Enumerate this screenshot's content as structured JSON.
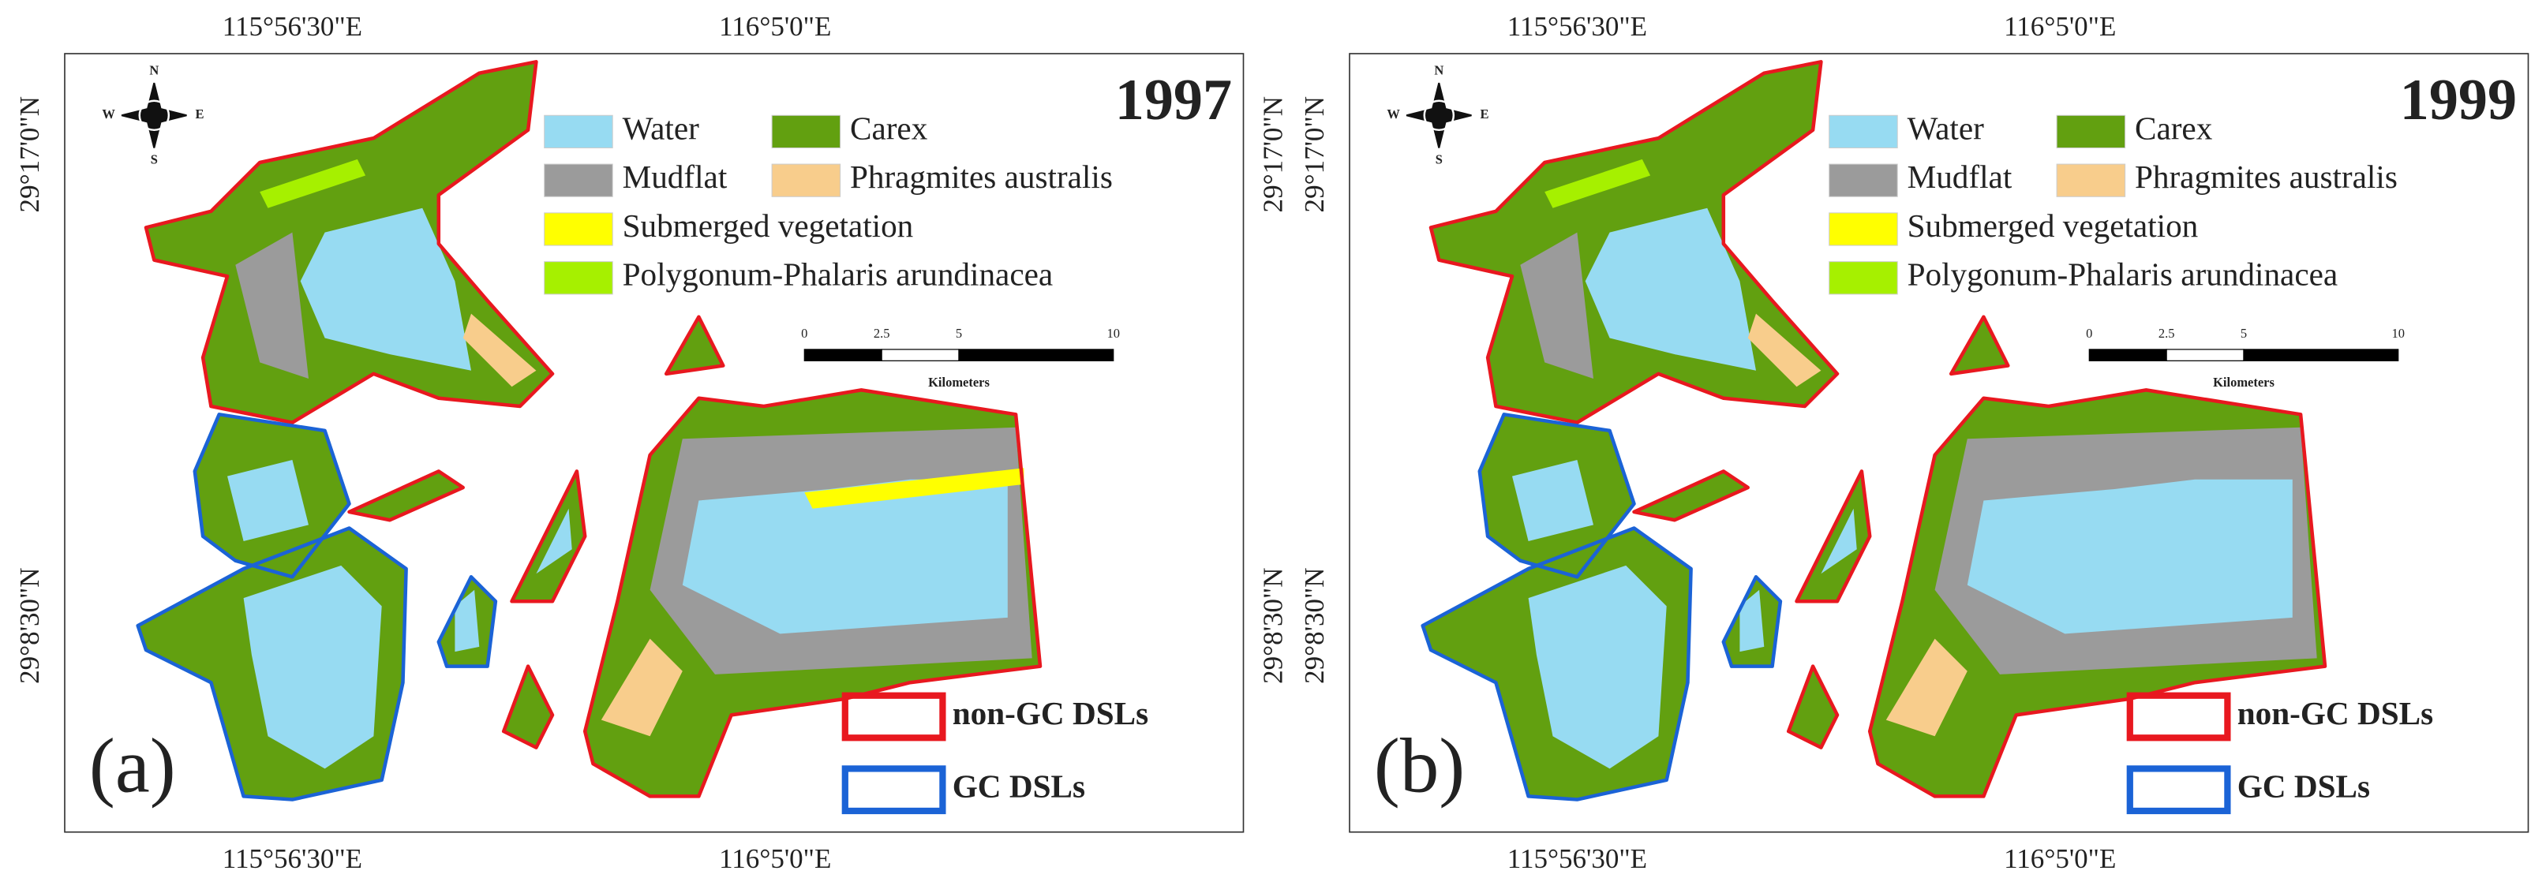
{
  "panels": [
    {
      "label": "(a)",
      "year": "1997"
    },
    {
      "label": "(b)",
      "year": "1999"
    }
  ],
  "coordinates": {
    "longitude": [
      "115°56'30\"E",
      "116°5'0\"E"
    ],
    "latitude": [
      "29°17'0\"N",
      "29°8'30\"N"
    ]
  },
  "compass": [
    "N",
    "E",
    "S",
    "W"
  ],
  "legend": [
    {
      "name": "Water",
      "color": "#97dbf2"
    },
    {
      "name": "Carex",
      "color": "#62a010"
    },
    {
      "name": "Mudflat",
      "color": "#9b9b9b"
    },
    {
      "name": "Phragmites australis",
      "color": "#f8cd8c"
    },
    {
      "name": "Submerged vegetation",
      "color": "#ffff00"
    },
    {
      "name": "Polygonum-Phalaris arundinacea",
      "color": "#a6f000"
    }
  ],
  "scale_bar": {
    "ticks": [
      0,
      2.5,
      5,
      10
    ],
    "unit": "Kilometers"
  },
  "dsl_legend": [
    {
      "name": "non-GC DSLs",
      "color": "#e8181f"
    },
    {
      "name": "GC DSLs",
      "color": "#1b63d6"
    }
  ]
}
